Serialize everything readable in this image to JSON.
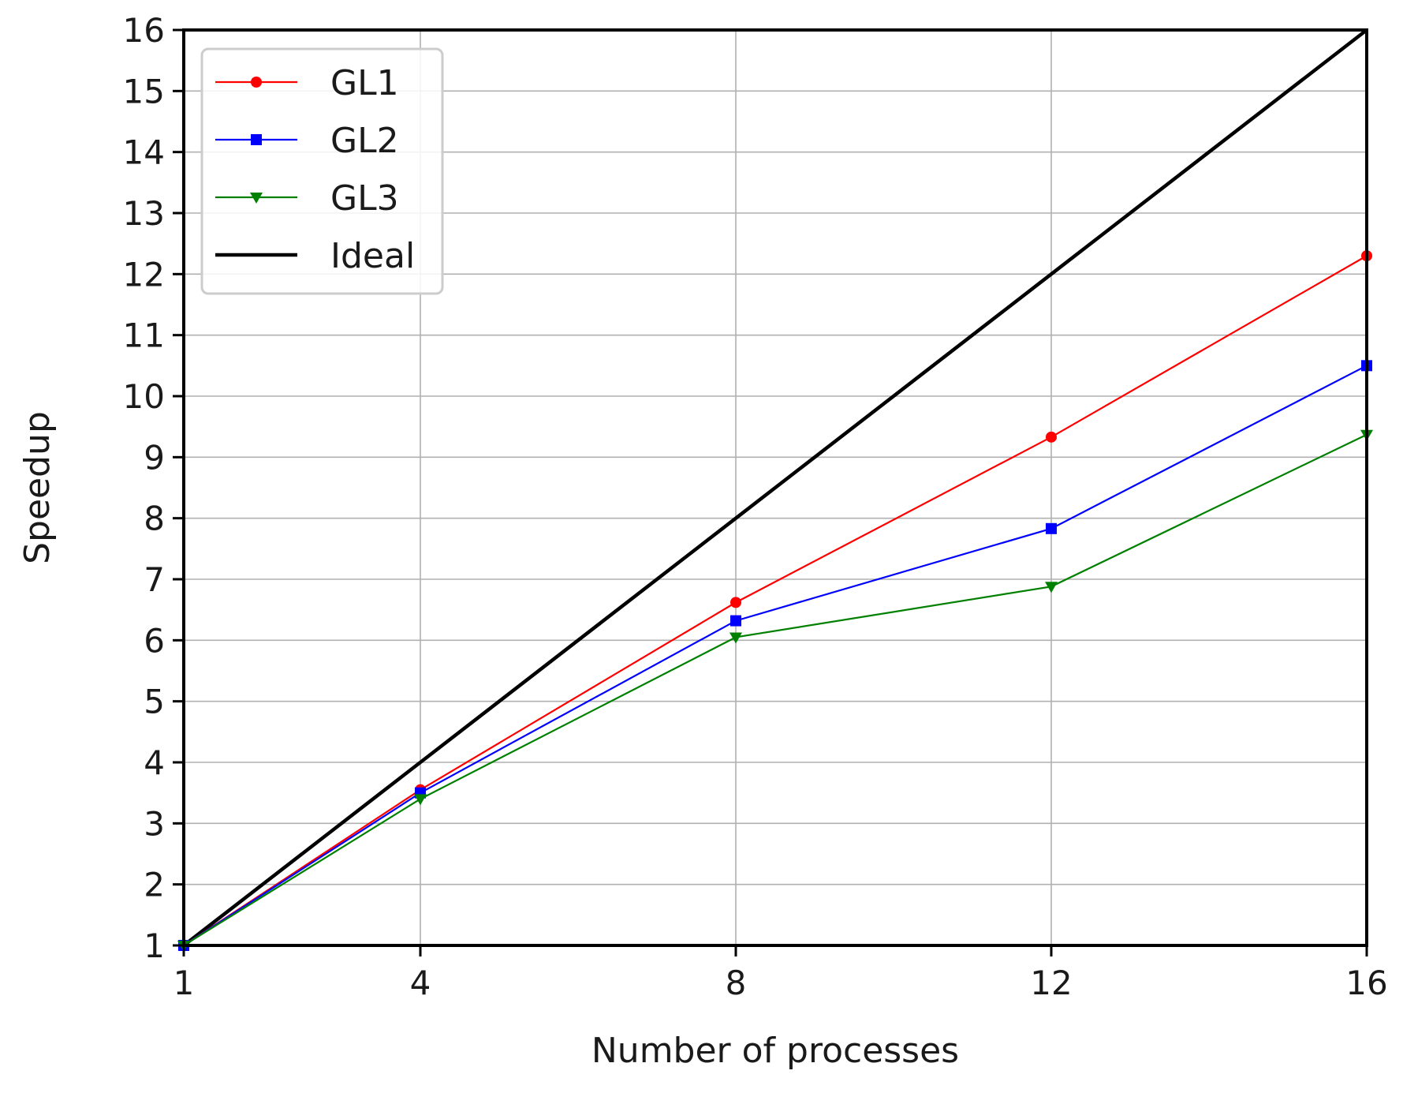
{
  "chart_data": {
    "type": "line",
    "title": "",
    "xlabel": "Number of processes",
    "ylabel": "Speedup",
    "x": [
      1,
      4,
      8,
      12,
      16
    ],
    "xticks": [
      1,
      4,
      8,
      12,
      16
    ],
    "yticks": [
      1,
      2,
      3,
      4,
      5,
      6,
      7,
      8,
      9,
      10,
      11,
      12,
      13,
      14,
      15,
      16
    ],
    "xlim": [
      1,
      16
    ],
    "ylim": [
      1,
      16
    ],
    "grid": true,
    "legend_position": "top-left",
    "series": [
      {
        "name": "GL1",
        "color": "#ff0000",
        "marker": "circle",
        "values": [
          1,
          3.55,
          6.62,
          9.33,
          12.3
        ]
      },
      {
        "name": "GL2",
        "color": "#0000ff",
        "marker": "square",
        "values": [
          1,
          3.5,
          6.32,
          7.83,
          10.5
        ]
      },
      {
        "name": "GL3",
        "color": "#008000",
        "marker": "triangle-down",
        "values": [
          1,
          3.4,
          6.05,
          6.88,
          9.37
        ]
      },
      {
        "name": "Ideal",
        "color": "#000000",
        "marker": "none",
        "values": [
          1,
          4,
          8,
          12,
          16
        ]
      }
    ]
  }
}
